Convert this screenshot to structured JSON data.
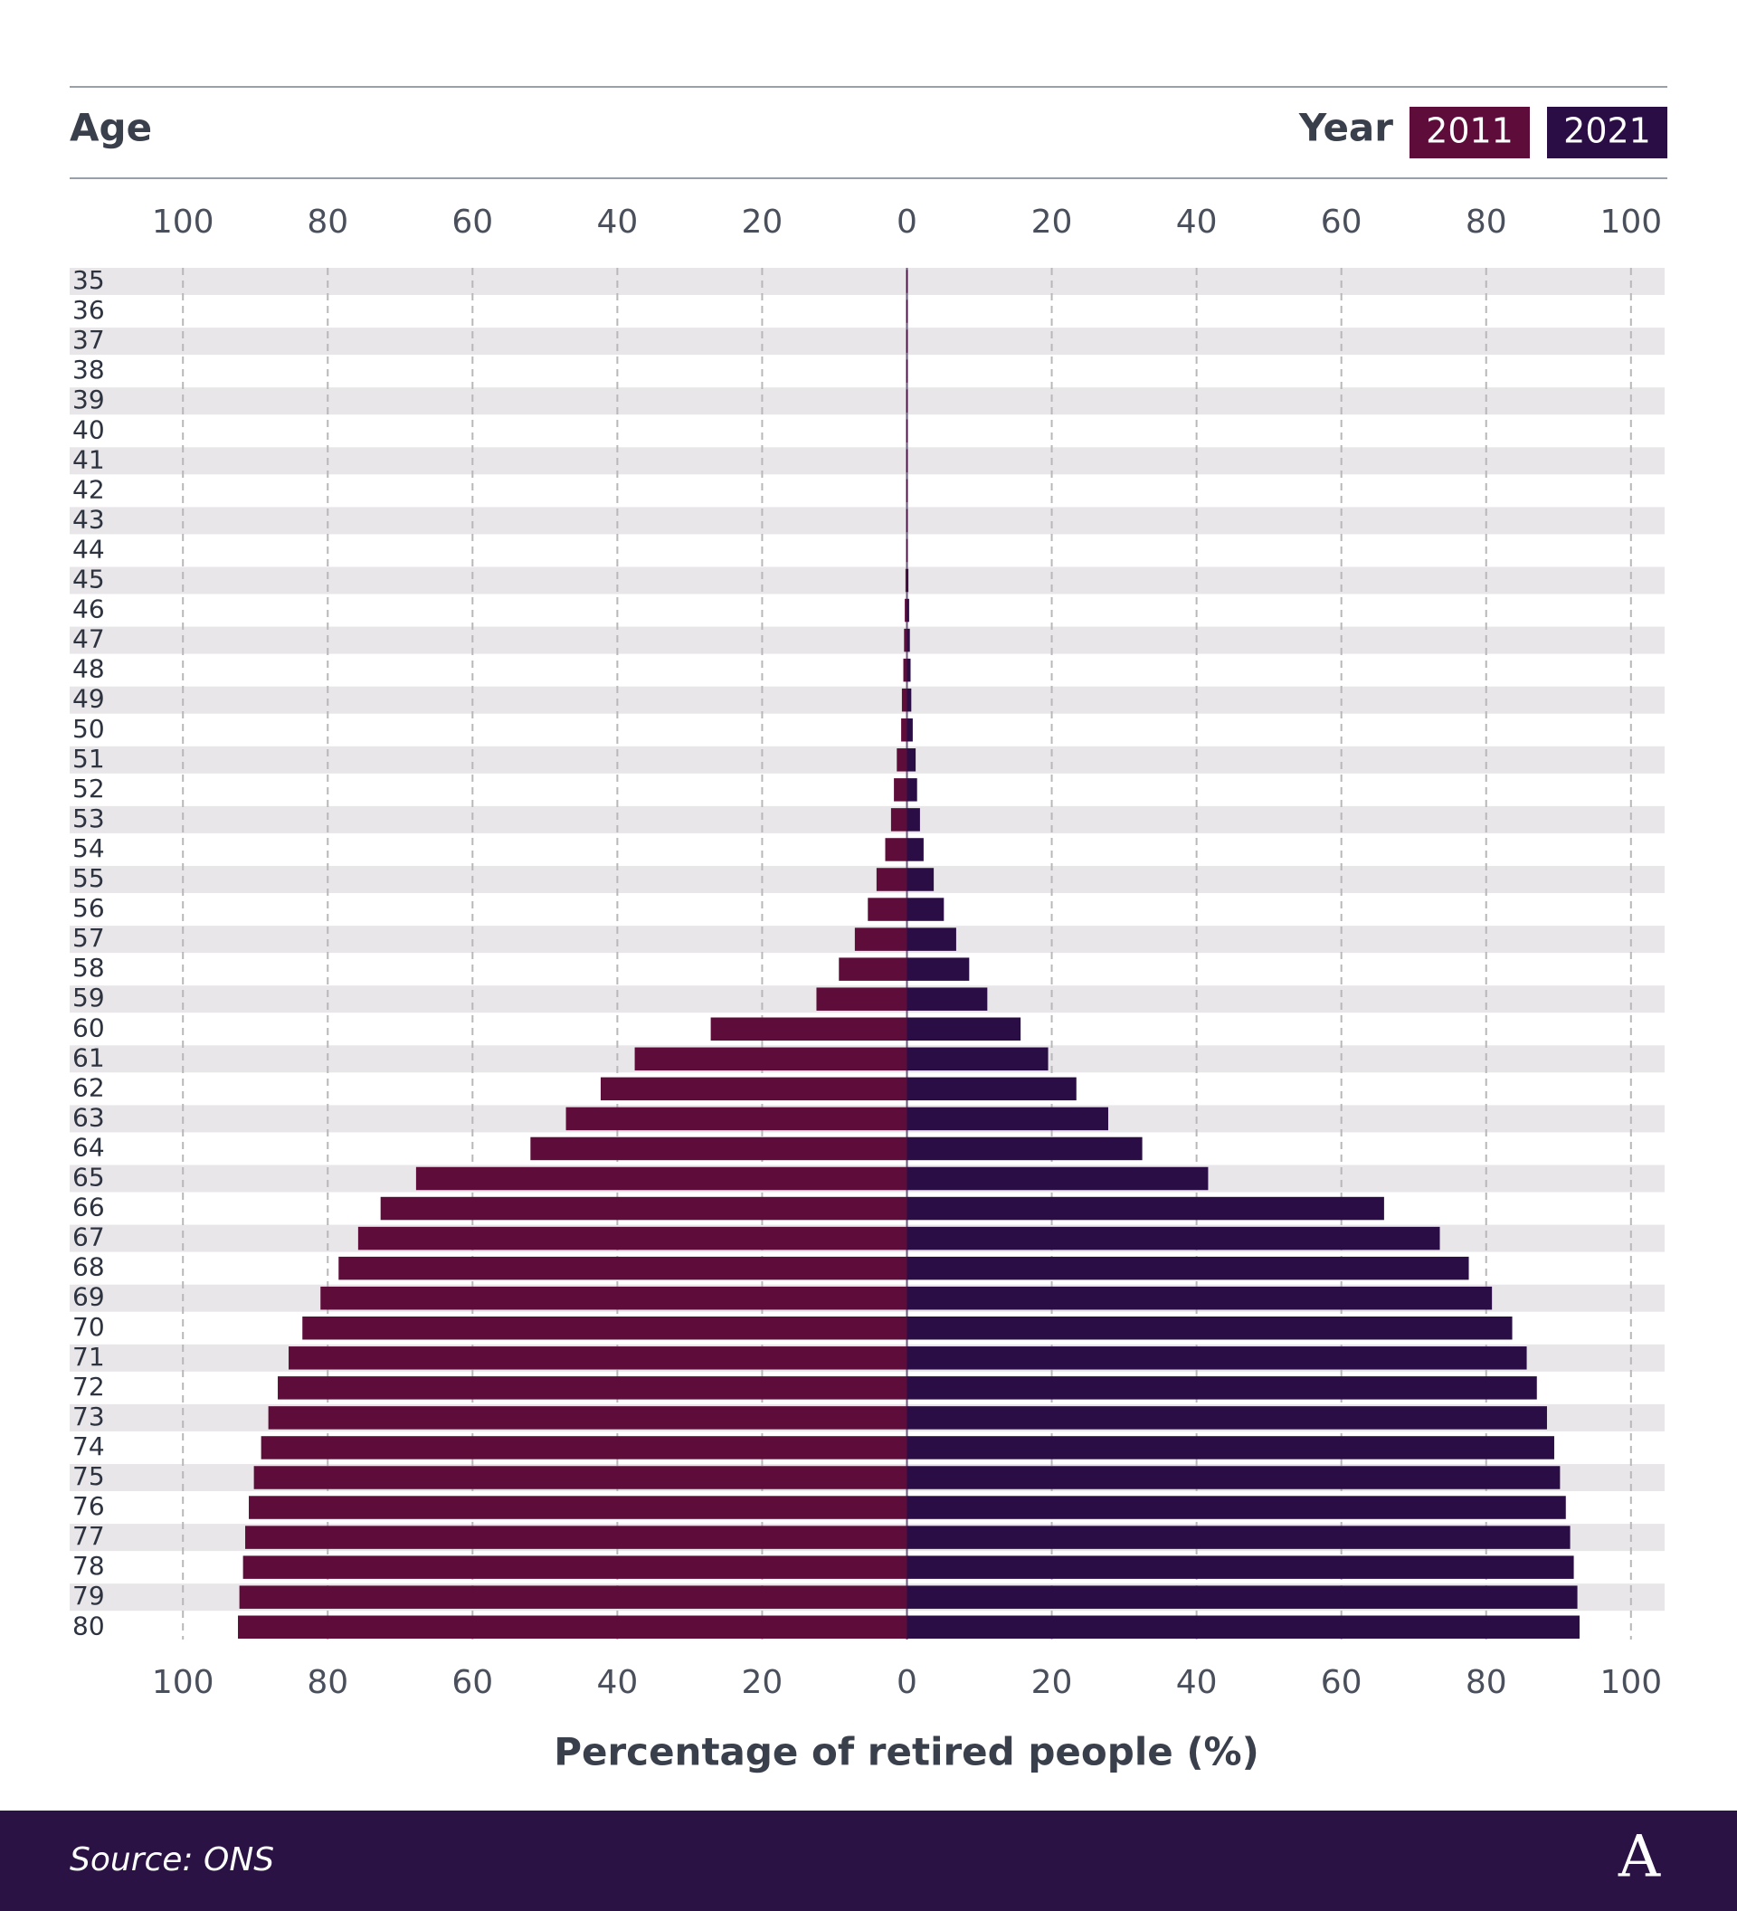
{
  "chart_data": {
    "type": "pyramid",
    "y_axis_label": "Age",
    "legend_title": "Year",
    "x_axis_label": "Percentage of retired people (%)",
    "source": "Source: ONS",
    "logo": "A",
    "categories": [
      "35",
      "36",
      "37",
      "38",
      "39",
      "40",
      "41",
      "42",
      "43",
      "44",
      "45",
      "46",
      "47",
      "48",
      "49",
      "50",
      "51",
      "52",
      "53",
      "54",
      "55",
      "56",
      "57",
      "58",
      "59",
      "60",
      "61",
      "62",
      "63",
      "64",
      "65",
      "66",
      "67",
      "68",
      "69",
      "70",
      "71",
      "72",
      "73",
      "74",
      "75",
      "76",
      "77",
      "78",
      "79",
      "80"
    ],
    "series": [
      {
        "name": "2011",
        "color": "#5e0d3a",
        "side": "left",
        "values": [
          0.1,
          0.1,
          0.1,
          0.1,
          0.1,
          0.1,
          0.1,
          0.1,
          0.1,
          0.1,
          0.2,
          0.3,
          0.4,
          0.5,
          0.7,
          0.8,
          1.4,
          1.8,
          2.2,
          3,
          4.2,
          5.4,
          7.2,
          9.4,
          12.5,
          27.1,
          37.6,
          42.3,
          47.1,
          52,
          67.8,
          72.7,
          75.8,
          78.5,
          81,
          83.5,
          85.4,
          86.9,
          88.2,
          89.2,
          90.2,
          90.9,
          91.4,
          91.7,
          92.2,
          92.4
        ]
      },
      {
        "name": "2021",
        "color": "#2b0d45",
        "side": "right",
        "values": [
          0.1,
          0.1,
          0.1,
          0.1,
          0.1,
          0.1,
          0.1,
          0.1,
          0.1,
          0.1,
          0.2,
          0.3,
          0.4,
          0.5,
          0.6,
          0.8,
          1.2,
          1.4,
          1.8,
          2.3,
          3.7,
          5.1,
          6.8,
          8.6,
          11.1,
          15.7,
          19.5,
          23.4,
          27.8,
          32.5,
          41.6,
          65.9,
          73.6,
          77.6,
          80.8,
          83.6,
          85.6,
          87,
          88.4,
          89.4,
          90.2,
          91,
          91.6,
          92.1,
          92.6,
          92.9
        ]
      }
    ],
    "xlim": [
      0,
      100
    ],
    "xticks": [
      0,
      20,
      40,
      60,
      80,
      100
    ],
    "grid": true
  }
}
